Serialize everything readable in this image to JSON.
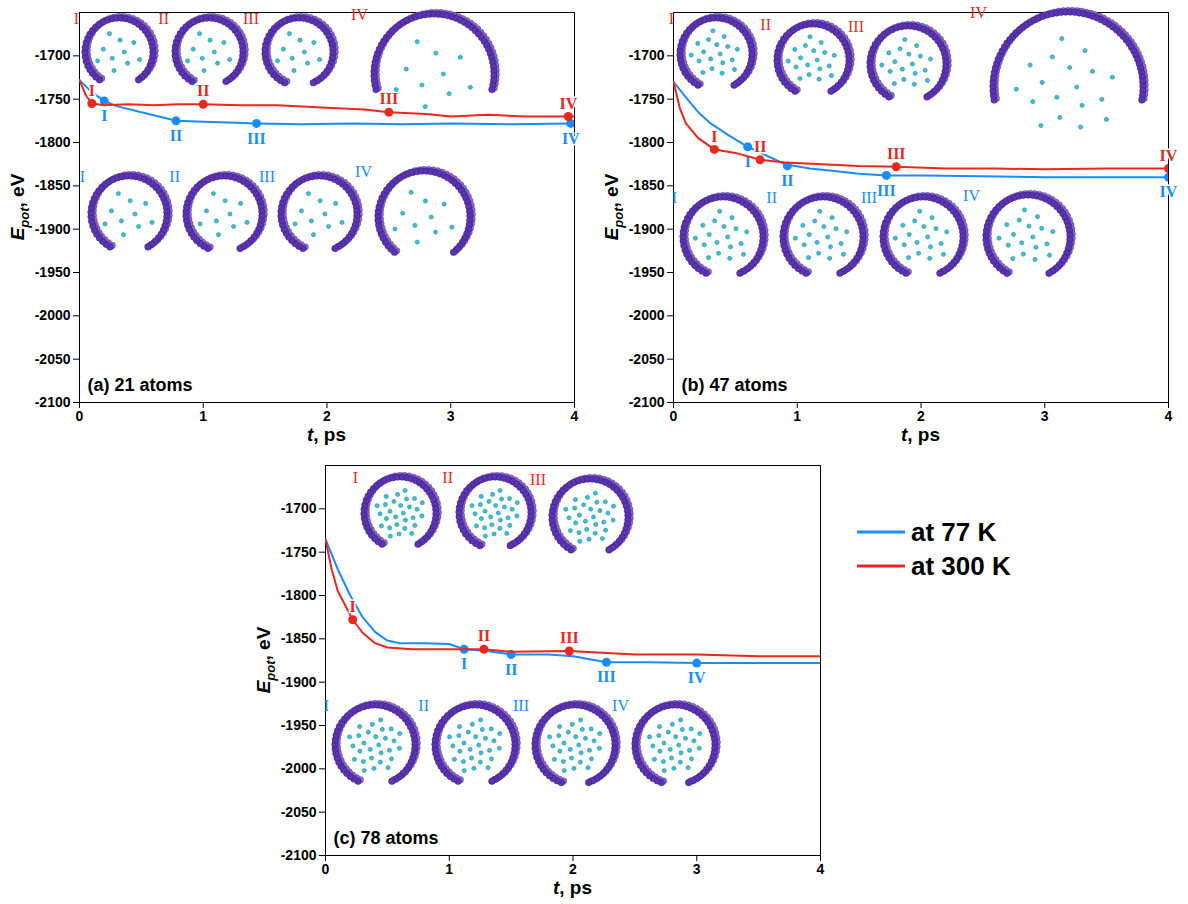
{
  "chart_data": [
    {
      "type": "line",
      "title": "(a) 21 atoms",
      "xlabel": "t, ps",
      "ylabel": "Epot, eV",
      "xlim": [
        0,
        4
      ],
      "xticks": [
        0,
        1,
        2,
        3,
        4
      ],
      "ylim": [
        -2100,
        -1650
      ],
      "yticks": [
        -2100,
        -2050,
        -2000,
        -1950,
        -1900,
        -1850,
        -1800,
        -1750,
        -1700
      ],
      "series": [
        {
          "name": "at 77 K",
          "color": "#1a8cff",
          "marker": "circle",
          "x": [
            0,
            0.1,
            0.2,
            0.3,
            0.5,
            0.7,
            0.78,
            1.0,
            1.2,
            1.43,
            1.8,
            2.2,
            2.6,
            3.0,
            3.5,
            3.97,
            4.0
          ],
          "values": [
            -1728,
            -1742,
            -1752,
            -1758,
            -1765,
            -1772,
            -1775,
            -1776,
            -1777,
            -1778,
            -1779,
            -1778,
            -1779,
            -1778,
            -1779,
            -1778,
            -1778
          ],
          "markers": {
            "x": [
              0.2,
              0.78,
              1.43,
              3.97
            ],
            "values": [
              -1752,
              -1775,
              -1778,
              -1778
            ],
            "labels": [
              "I",
              "II",
              "III",
              "IV"
            ]
          }
        },
        {
          "name": "at 300 K",
          "color": "#e8281e",
          "marker": "circle",
          "x": [
            0,
            0.05,
            0.1,
            0.2,
            0.4,
            0.6,
            0.8,
            1.0,
            1.3,
            1.6,
            2.0,
            2.3,
            2.5,
            2.8,
            3.0,
            3.3,
            3.6,
            3.95,
            4.0
          ],
          "values": [
            -1728,
            -1745,
            -1755,
            -1757,
            -1756,
            -1757,
            -1756,
            -1756,
            -1757,
            -1757,
            -1760,
            -1762,
            -1765,
            -1767,
            -1770,
            -1768,
            -1770,
            -1770,
            -1770
          ],
          "markers": {
            "x": [
              0.1,
              1.0,
              2.5,
              3.95
            ],
            "values": [
              -1755,
              -1756,
              -1765,
              -1770
            ],
            "labels": [
              "I",
              "II",
              "III",
              "IV"
            ]
          }
        }
      ]
    },
    {
      "type": "line",
      "title": "(b) 47 atoms",
      "xlabel": "t, ps",
      "ylabel": "Epot, eV",
      "xlim": [
        0,
        4
      ],
      "xticks": [
        0,
        1,
        2,
        3,
        4
      ],
      "ylim": [
        -2100,
        -1650
      ],
      "yticks": [
        -2100,
        -2050,
        -2000,
        -1950,
        -1900,
        -1850,
        -1800,
        -1750,
        -1700
      ],
      "series": [
        {
          "name": "at 77 K",
          "color": "#1a8cff",
          "marker": "circle",
          "x": [
            0,
            0.1,
            0.2,
            0.3,
            0.45,
            0.6,
            0.75,
            0.9,
            1.1,
            1.3,
            1.5,
            1.72,
            2.0,
            2.5,
            3.0,
            3.5,
            4.0
          ],
          "values": [
            -1730,
            -1748,
            -1765,
            -1778,
            -1792,
            -1805,
            -1815,
            -1825,
            -1830,
            -1833,
            -1836,
            -1838,
            -1838,
            -1839,
            -1840,
            -1840,
            -1840
          ],
          "markers": {
            "x": [
              0.6,
              0.92,
              1.72,
              4.0
            ],
            "values": [
              -1805,
              -1827,
              -1838,
              -1840
            ],
            "labels": [
              "I",
              "II",
              "III",
              "IV"
            ]
          }
        },
        {
          "name": "at 300 K",
          "color": "#e8281e",
          "marker": "circle",
          "x": [
            0,
            0.05,
            0.1,
            0.2,
            0.33,
            0.5,
            0.7,
            0.9,
            1.2,
            1.5,
            1.8,
            2.2,
            2.6,
            3.0,
            3.5,
            4.0
          ],
          "values": [
            -1730,
            -1760,
            -1778,
            -1795,
            -1808,
            -1812,
            -1820,
            -1823,
            -1825,
            -1827,
            -1828,
            -1830,
            -1830,
            -1831,
            -1830,
            -1830
          ],
          "markers": {
            "x": [
              0.33,
              0.7,
              1.8,
              4.0
            ],
            "values": [
              -1808,
              -1820,
              -1828,
              -1830
            ],
            "labels": [
              "I",
              "II",
              "III",
              "IV"
            ]
          }
        }
      ]
    },
    {
      "type": "line",
      "title": "(c) 78 atoms",
      "xlabel": "t, ps",
      "ylabel": "Epot, eV",
      "legend": "right",
      "xlim": [
        0,
        4
      ],
      "xticks": [
        0,
        1,
        2,
        3,
        4
      ],
      "ylim": [
        -2100,
        -1650
      ],
      "yticks": [
        -2100,
        -2050,
        -2000,
        -1950,
        -1900,
        -1850,
        -1800,
        -1750,
        -1700
      ],
      "series": [
        {
          "name": "at 77 K",
          "color": "#1a8cff",
          "marker": "circle",
          "x": [
            0,
            0.1,
            0.2,
            0.3,
            0.4,
            0.5,
            0.6,
            0.8,
            1.0,
            1.12,
            1.3,
            1.5,
            1.8,
            2.0,
            2.27,
            2.6,
            3.0,
            3.5,
            4.0
          ],
          "values": [
            -1735,
            -1770,
            -1800,
            -1825,
            -1842,
            -1852,
            -1855,
            -1855,
            -1856,
            -1862,
            -1864,
            -1868,
            -1868,
            -1870,
            -1877,
            -1877,
            -1878,
            -1878,
            -1878
          ],
          "markers": {
            "x": [
              1.12,
              1.5,
              2.27,
              3.0
            ],
            "values": [
              -1862,
              -1868,
              -1877,
              -1878
            ],
            "labels": [
              "I",
              "II",
              "III",
              "IV"
            ]
          }
        },
        {
          "name": "at 300 K",
          "color": "#e8281e",
          "marker": "circle",
          "x": [
            0,
            0.05,
            0.1,
            0.22,
            0.3,
            0.4,
            0.5,
            0.7,
            1.0,
            1.28,
            1.5,
            1.97,
            2.5,
            3.0,
            3.5,
            4.0
          ],
          "values": [
            -1735,
            -1770,
            -1795,
            -1828,
            -1843,
            -1855,
            -1860,
            -1862,
            -1862,
            -1862,
            -1865,
            -1864,
            -1868,
            -1868,
            -1870,
            -1870
          ],
          "markers": {
            "x": [
              0.22,
              1.28,
              1.97
            ],
            "values": [
              -1828,
              -1862,
              -1864
            ],
            "labels": [
              "I",
              "II",
              "III"
            ]
          }
        }
      ]
    }
  ]
}
